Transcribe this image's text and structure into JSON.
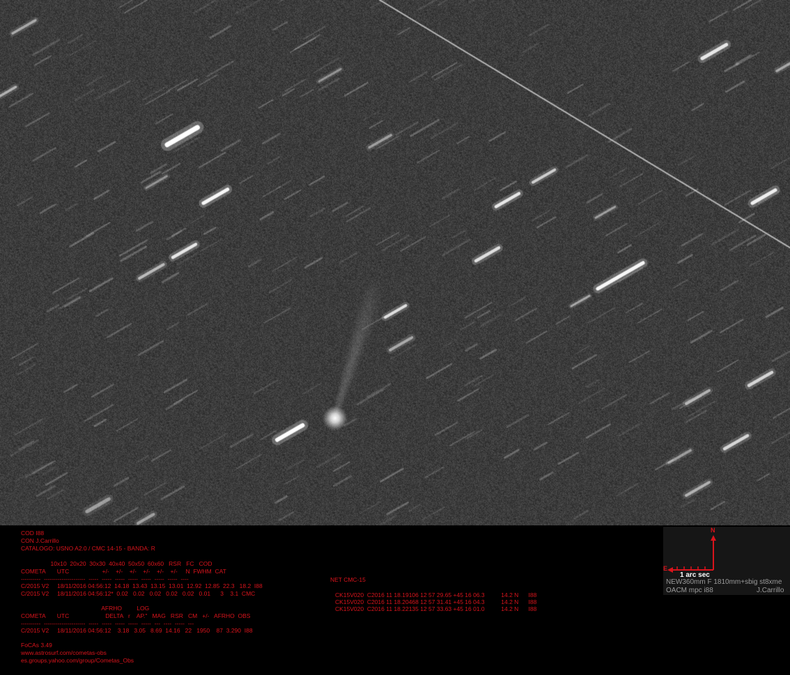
{
  "photo": {
    "subject": "comet-field"
  },
  "header_lines": [
    "COD I88",
    "CON J.Carrillo",
    "CATALOGO: USNO A2.0 / CMC 14-15 - BANDA: R"
  ],
  "table1": {
    "header_top": "                  10x10  20x20  30x30  40x40  50x50  60x60   RSR   FC   COD",
    "header_main": "COMETA       UTC                    +/-    +/-    +/-    +/-    +/-    +/-     N  FWHM  CAT",
    "rule": "----------  ---------------------  -----  -----  -----  -----  -----  -----  -----  ----",
    "rows": [
      "C/2015 V2     18/11/2016 04:56:12  14.18  13.43  13.15  13.01  12.92  12.85  22.3   18.2  I88",
      "C/2015 V2     18/11/2016 04:56:12*  0.02   0.02   0.02   0.02   0.02   0.01      3    3.1  CMC"
    ]
  },
  "table2": {
    "header_top": "                                                 AFRHO         LOG",
    "header_main": "COMETA       UTC                      DELTA   r    AP.\"   MAG   RSR   CM   +/-   AFRHO  OBS",
    "rule": "----------  ---------------------  -----  -----  -----  -----  -----  ---  ----  -----  ---",
    "row": "C/2015 V2     18/11/2016 04:56:12    3.18   3.05   8.69  14.16   22   1950    87  3.290  I88"
  },
  "footer_lines": [
    "FoCAs 3.49",
    "www.astrosurf.com/cometas-obs",
    "es.groups.yahoo.com/group/Cometas_Obs"
  ],
  "net": {
    "title": "NET CMC-15",
    "rows": [
      "CK15V020  C2016 11 18.19106 12 57 29.65 +45 16 06.3          14.2 N      I88",
      "CK15V020  C2016 11 18.20468 12 57 31.41 +45 16 04.3          14.2 N      I88",
      "CK15V020  C2016 11 18.22135 12 57 33.63 +45 16 01.0          14.2 N      I88"
    ]
  },
  "scale": {
    "north": "N",
    "east": "E",
    "arc_label": "1 arc sec",
    "telescope": "NEW360mm F 1810mm+sbig st8xme",
    "observatory": "OACM mpc i88",
    "author": "J.Carrillo"
  },
  "colors": {
    "text_red": "#d8141c",
    "scale_text": "#9a9a9a"
  }
}
